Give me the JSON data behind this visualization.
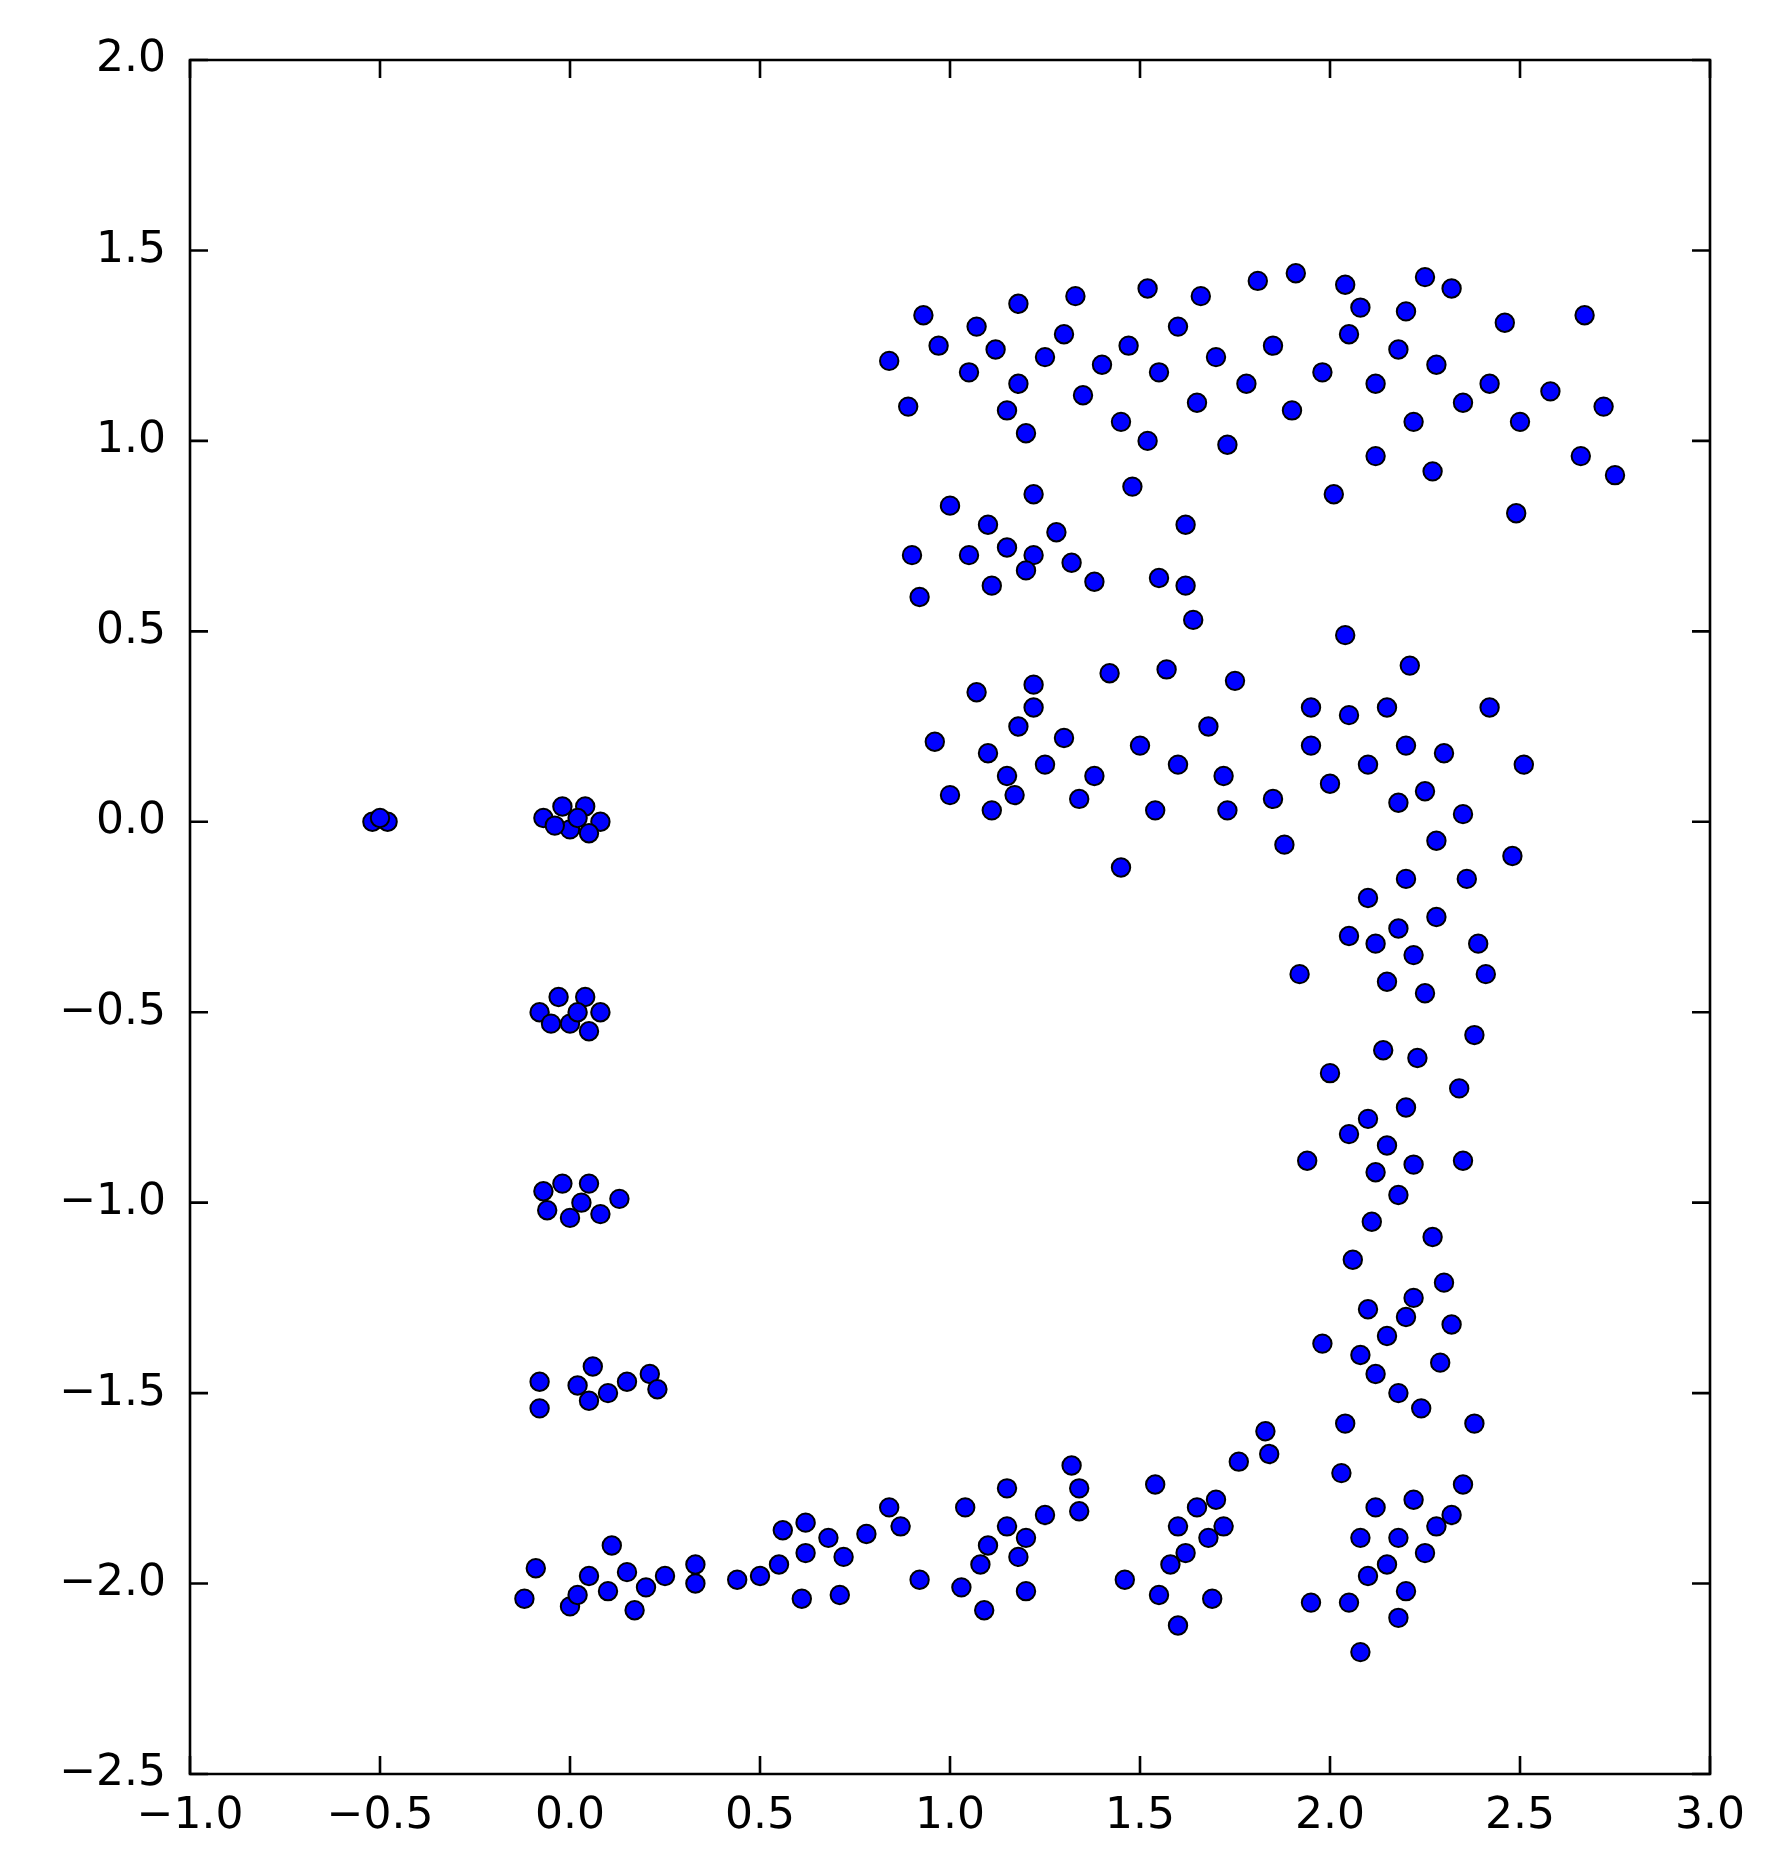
{
  "chart_data": {
    "type": "scatter",
    "color": "#0000ff",
    "marker": "circle",
    "grid": false,
    "legend": false,
    "xlim": [
      -1,
      3
    ],
    "ylim": [
      -2.5,
      2
    ],
    "xticks": [
      {
        "value": -1,
        "label": "−1.0"
      },
      {
        "value": -0.5,
        "label": "−0.5"
      },
      {
        "value": 0,
        "label": "0.0"
      },
      0.5,
      {
        "value": 1,
        "label": "1.0"
      },
      1.5,
      {
        "value": 2,
        "label": "2.0"
      },
      2.5,
      {
        "value": 3,
        "label": "3.0"
      }
    ],
    "yticks": [
      {
        "value": -2.5,
        "label": "−2.5"
      },
      {
        "value": -2,
        "label": "−2.0"
      },
      {
        "value": -1.5,
        "label": "−1.5"
      },
      {
        "value": -1,
        "label": "−1.0"
      },
      {
        "value": -0.5,
        "label": "−0.5"
      },
      {
        "value": 0,
        "label": "0.0"
      },
      0.5,
      {
        "value": 1,
        "label": "1.0"
      },
      1.5,
      {
        "value": 2,
        "label": "2.0"
      }
    ],
    "x": [
      -0.52,
      -0.48,
      -0.5,
      -0.07,
      -0.02,
      0.04,
      0.08,
      0,
      0.05,
      -0.04,
      0.02,
      -0.08,
      -0.03,
      0.04,
      0.08,
      0,
      0.05,
      -0.05,
      0.02,
      -0.07,
      -0.02,
      0.05,
      0.13,
      0.08,
      0,
      -0.06,
      0.03,
      -0.08,
      0.06,
      0.21,
      0.23,
      -0.08,
      0.02,
      0.1,
      0.05,
      0.15,
      -0.12,
      -0.09,
      0.11,
      0.33,
      0.33,
      0.17,
      0,
      0.05,
      0.1,
      0.15,
      0.2,
      0.25,
      0.02,
      0.44,
      0.61,
      0.71,
      0.56,
      0.62,
      0.84,
      0.87,
      0.55,
      0.62,
      0.68,
      0.72,
      0.5,
      0.78,
      0.92,
      1.03,
      1.09,
      1.2,
      1.04,
      1.15,
      1.32,
      1.34,
      1.34,
      1.1,
      1.15,
      1.2,
      1.25,
      1.08,
      1.18,
      1.46,
      1.54,
      1.6,
      1.69,
      1.83,
      1.84,
      1.76,
      1.55,
      1.6,
      1.65,
      1.7,
      1.62,
      1.68,
      1.58,
      1.72,
      1.92,
      2.39,
      2.41,
      2.38,
      2.14,
      2.23,
      2.1,
      2.18,
      2.22,
      2.15,
      2.25,
      2.12,
      2.2,
      2.28,
      2.05,
      2,
      1.94,
      2.34,
      2.35,
      2.11,
      2.27,
      2.1,
      2.15,
      2.2,
      2.12,
      2.18,
      2.05,
      2.22,
      2.06,
      2.3,
      2.32,
      1.98,
      2.04,
      2.29,
      2.1,
      2.15,
      2.2,
      2.12,
      2.18,
      2.08,
      2.22,
      2.24,
      2.38,
      2.03,
      2.35,
      2.32,
      1.95,
      2.08,
      2.18,
      2.12,
      2.18,
      2.22,
      2.15,
      2.25,
      2.1,
      2.2,
      2.08,
      2.28,
      2.05,
      0.96,
      1,
      1.07,
      1.11,
      1.22,
      1.42,
      1.57,
      1.75,
      1.64,
      2.04,
      2.21,
      2.42,
      2.51,
      2.48,
      2.36,
      1.88,
      1.85,
      1.45,
      1.54,
      1.73,
      1.17,
      1.34,
      1.1,
      1.18,
      1.25,
      1.15,
      1.3,
      1.22,
      1.38,
      1.5,
      1.6,
      1.68,
      1.72,
      1.95,
      2.05,
      2.1,
      2.15,
      2.2,
      2.25,
      2.3,
      2.35,
      2,
      2.18,
      2.28,
      1.95,
      0.9,
      1,
      1.22,
      1.48,
      1.62,
      1.62,
      1.55,
      1.11,
      0.92,
      1.15,
      1.22,
      1.28,
      1.2,
      1.32,
      1.1,
      1.05,
      1.38,
      0.84,
      0.93,
      0.89,
      0.97,
      1.07,
      1.18,
      1.33,
      1.2,
      1.52,
      1.66,
      1.81,
      1.91,
      2.04,
      2.25,
      2.32,
      2.46,
      2.67,
      2.58,
      2.66,
      2.49,
      2.27,
      2.01,
      2.12,
      1.73,
      1.52,
      2.75,
      2.72,
      1.05,
      1.12,
      1.18,
      1.25,
      1.3,
      1.35,
      1.4,
      1.47,
      1.55,
      1.6,
      1.65,
      1.7,
      1.78,
      1.85,
      1.9,
      1.98,
      2.05,
      2.12,
      2.18,
      2.22,
      2.28,
      2.35,
      2.42,
      2.5,
      1.15,
      1.45,
      2.08,
      2.2
    ],
    "values": [
      0,
      0,
      0.01,
      0.01,
      0.04,
      0.04,
      0,
      -0.02,
      -0.03,
      -0.01,
      0.01,
      -0.5,
      -0.46,
      -0.46,
      -0.5,
      -0.53,
      -0.55,
      -0.53,
      -0.5,
      -0.97,
      -0.95,
      -0.95,
      -0.99,
      -1.03,
      -1.04,
      -1.02,
      -1,
      -1.47,
      -1.43,
      -1.45,
      -1.49,
      -1.54,
      -1.48,
      -1.5,
      -1.52,
      -1.47,
      -2.04,
      -1.96,
      -1.9,
      -1.95,
      -2,
      -2.07,
      -2.06,
      -1.98,
      -2.02,
      -1.97,
      -2.01,
      -1.98,
      -2.03,
      -1.99,
      -2.04,
      -2.03,
      -1.86,
      -1.84,
      -1.8,
      -1.85,
      -1.95,
      -1.92,
      -1.88,
      -1.93,
      -1.98,
      -1.87,
      -1.99,
      -2.01,
      -2.07,
      -2.02,
      -1.8,
      -1.75,
      -1.69,
      -1.75,
      -1.81,
      -1.9,
      -1.85,
      -1.88,
      -1.82,
      -1.95,
      -1.93,
      -1.99,
      -1.74,
      -2.11,
      -2.04,
      -1.6,
      -1.66,
      -1.68,
      -2.03,
      -1.85,
      -1.8,
      -1.78,
      -1.92,
      -1.88,
      -1.95,
      -1.85,
      -0.4,
      -0.32,
      -0.4,
      -0.56,
      -0.6,
      -0.62,
      -0.2,
      -0.28,
      -0.35,
      -0.42,
      -0.45,
      -0.32,
      -0.15,
      -0.25,
      -0.3,
      -0.66,
      -0.89,
      -0.7,
      -0.89,
      -1.05,
      -1.09,
      -0.78,
      -0.85,
      -0.75,
      -0.92,
      -0.98,
      -0.82,
      -0.9,
      -1.15,
      -1.21,
      -1.32,
      -1.37,
      -1.58,
      -1.42,
      -1.28,
      -1.35,
      -1.3,
      -1.45,
      -1.5,
      -1.4,
      -1.25,
      -1.54,
      -1.58,
      -1.71,
      -1.74,
      -1.82,
      -2.05,
      -2.18,
      -2.09,
      -1.8,
      -1.88,
      -1.78,
      -1.95,
      -1.92,
      -1.98,
      -2.02,
      -1.88,
      -1.85,
      -2.05,
      0.21,
      0.07,
      0.34,
      0.03,
      0.36,
      0.39,
      0.4,
      0.37,
      0.53,
      0.49,
      0.41,
      0.3,
      0.15,
      -0.09,
      -0.15,
      -0.06,
      0.06,
      -0.12,
      0.03,
      0.03,
      0.07,
      0.06,
      0.18,
      0.25,
      0.15,
      0.12,
      0.22,
      0.3,
      0.12,
      0.2,
      0.15,
      0.25,
      0.12,
      0.2,
      0.28,
      0.15,
      0.3,
      0.2,
      0.08,
      0.18,
      0.02,
      0.1,
      0.05,
      -0.05,
      0.3,
      0.7,
      0.83,
      0.86,
      0.88,
      0.78,
      0.62,
      0.64,
      0.62,
      0.59,
      0.72,
      0.7,
      0.76,
      0.66,
      0.68,
      0.78,
      0.7,
      0.63,
      1.21,
      1.33,
      1.09,
      1.25,
      1.3,
      1.36,
      1.38,
      1.02,
      1.4,
      1.38,
      1.42,
      1.44,
      1.41,
      1.43,
      1.4,
      1.31,
      1.33,
      1.13,
      0.96,
      0.81,
      0.92,
      0.86,
      0.96,
      0.99,
      1,
      0.91,
      1.09,
      1.18,
      1.24,
      1.15,
      1.22,
      1.28,
      1.12,
      1.2,
      1.25,
      1.18,
      1.3,
      1.1,
      1.22,
      1.15,
      1.25,
      1.08,
      1.18,
      1.28,
      1.15,
      1.24,
      1.05,
      1.2,
      1.1,
      1.15,
      1.05,
      1.08,
      1.05,
      1.35,
      1.34
    ]
  }
}
